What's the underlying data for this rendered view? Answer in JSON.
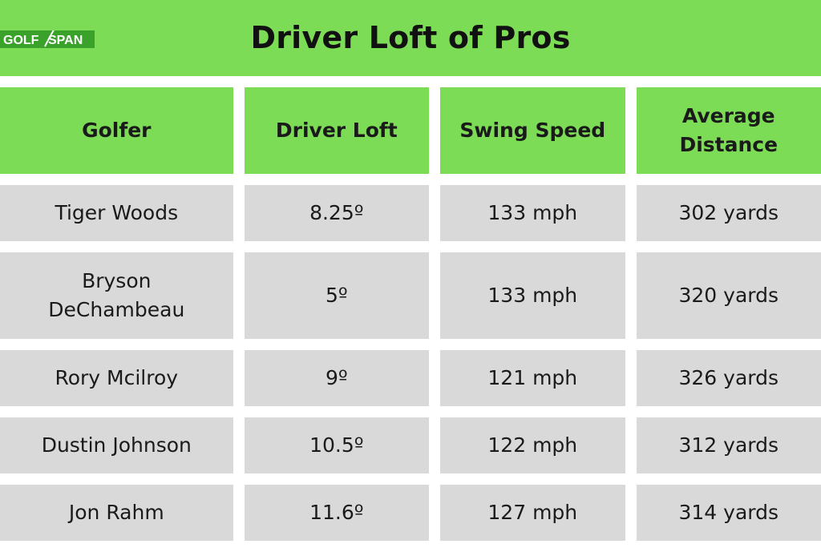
{
  "header": {
    "title": "Driver Loft of Pros",
    "logo": {
      "word1": "GOLF",
      "word2": "SPAN",
      "colors": {
        "badge": "#3aa12a",
        "text": "#ffffff",
        "swoosh": "#ffffff"
      }
    }
  },
  "colors": {
    "header_bg": "#7ddc55",
    "cell_bg": "#d9d9d9",
    "gap": "#ffffff",
    "text": "#1a1a1a"
  },
  "chart_data": {
    "type": "table",
    "title": "Driver Loft of Pros",
    "columns": [
      "Golfer",
      "Driver Loft",
      "Swing Speed",
      "Average Distance"
    ],
    "rows": [
      [
        "Tiger Woods",
        "8.25º",
        "133 mph",
        "302 yards"
      ],
      [
        "Bryson DeChambeau",
        "5º",
        "133 mph",
        "320 yards"
      ],
      [
        "Rory Mcilroy",
        "9º",
        "121 mph",
        "326 yards"
      ],
      [
        "Dustin Johnson",
        "10.5º",
        "122 mph",
        "312 yards"
      ],
      [
        "Jon Rahm",
        "11.6º",
        "127 mph",
        "314 yards"
      ]
    ]
  }
}
